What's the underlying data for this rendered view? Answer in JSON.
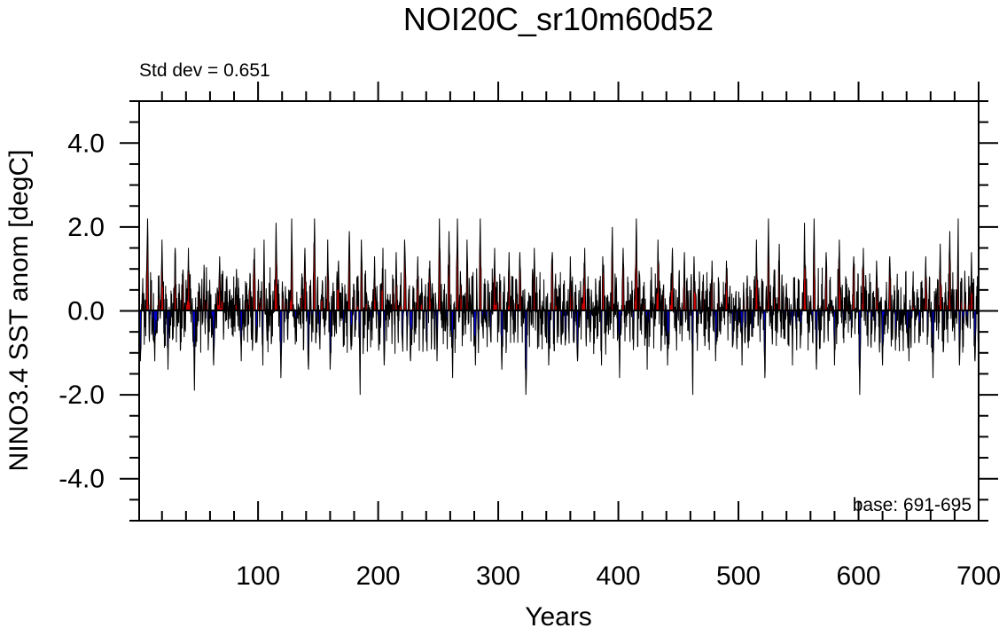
{
  "chart_data": {
    "type": "line",
    "title": "NOI20C_sr10m60d52",
    "subtitle_left": "Std dev = 0.651",
    "annotation": "base: 691-695",
    "xlabel": "Years",
    "ylabel": "NINO3.4 SST anom [degC]",
    "xlim": [
      1,
      700
    ],
    "ylim": [
      -5,
      5
    ],
    "x_ticks": [
      100,
      200,
      300,
      400,
      500,
      600,
      700
    ],
    "x_tick_labels": [
      "100",
      "200",
      "300",
      "400",
      "500",
      "600",
      "700"
    ],
    "y_ticks": [
      -4,
      -2,
      0,
      2,
      4
    ],
    "y_tick_labels": [
      "-4.0",
      "-2.0",
      "0.0",
      "2.0",
      "4.0"
    ],
    "std_dev": 0.651,
    "fill_above_color": "#cc0000",
    "fill_below_color": "#0000cc",
    "line_color": "#000000",
    "series": [
      {
        "values_description_omitted": true,
        "peaks": [
          {
            "x": 8,
            "y": 2.2
          },
          {
            "x": 20,
            "y": 1.7
          },
          {
            "x": 31,
            "y": 1.5
          },
          {
            "x": 42,
            "y": 1.5
          },
          {
            "x": 55,
            "y": 1.1
          },
          {
            "x": 68,
            "y": 1.3
          },
          {
            "x": 82,
            "y": 1.0
          },
          {
            "x": 97,
            "y": 1.5
          },
          {
            "x": 105,
            "y": 1.7
          },
          {
            "x": 115,
            "y": 2.1
          },
          {
            "x": 128,
            "y": 2.2
          },
          {
            "x": 139,
            "y": 1.5
          },
          {
            "x": 147,
            "y": 2.2
          },
          {
            "x": 158,
            "y": 1.7
          },
          {
            "x": 167,
            "y": 1.2
          },
          {
            "x": 176,
            "y": 1.9
          },
          {
            "x": 186,
            "y": 1.7
          },
          {
            "x": 197,
            "y": 1.3
          },
          {
            "x": 204,
            "y": 1.5
          },
          {
            "x": 215,
            "y": 1.4
          },
          {
            "x": 222,
            "y": 1.7
          },
          {
            "x": 233,
            "y": 1.3
          },
          {
            "x": 243,
            "y": 1.2
          },
          {
            "x": 251,
            "y": 2.2
          },
          {
            "x": 259,
            "y": 1.9
          },
          {
            "x": 266,
            "y": 2.2
          },
          {
            "x": 274,
            "y": 1.7
          },
          {
            "x": 285,
            "y": 2.2
          },
          {
            "x": 297,
            "y": 1.5
          },
          {
            "x": 309,
            "y": 1.4
          },
          {
            "x": 318,
            "y": 1.4
          },
          {
            "x": 330,
            "y": 1.5
          },
          {
            "x": 345,
            "y": 1.4
          },
          {
            "x": 360,
            "y": 1.3
          },
          {
            "x": 372,
            "y": 1.5
          },
          {
            "x": 387,
            "y": 1.3
          },
          {
            "x": 395,
            "y": 2.0
          },
          {
            "x": 404,
            "y": 1.5
          },
          {
            "x": 415,
            "y": 2.2
          },
          {
            "x": 424,
            "y": 2.1
          },
          {
            "x": 433,
            "y": 1.7
          },
          {
            "x": 445,
            "y": 1.5
          },
          {
            "x": 455,
            "y": 1.4
          },
          {
            "x": 463,
            "y": 1.3
          },
          {
            "x": 478,
            "y": 1.2
          },
          {
            "x": 490,
            "y": 1.2
          },
          {
            "x": 503,
            "y": 1.2
          },
          {
            "x": 515,
            "y": 1.7
          },
          {
            "x": 525,
            "y": 2.2
          },
          {
            "x": 534,
            "y": 1.6
          },
          {
            "x": 545,
            "y": 2.0
          },
          {
            "x": 555,
            "y": 2.1
          },
          {
            "x": 563,
            "y": 2.2
          },
          {
            "x": 573,
            "y": 1.4
          },
          {
            "x": 584,
            "y": 1.7
          },
          {
            "x": 596,
            "y": 1.3
          },
          {
            "x": 604,
            "y": 1.5
          },
          {
            "x": 615,
            "y": 1.2
          },
          {
            "x": 626,
            "y": 1.3
          },
          {
            "x": 642,
            "y": 1.3
          },
          {
            "x": 656,
            "y": 1.3
          },
          {
            "x": 668,
            "y": 1.6
          },
          {
            "x": 676,
            "y": 1.9
          },
          {
            "x": 683,
            "y": 2.2
          },
          {
            "x": 694,
            "y": 1.4
          }
        ],
        "troughs": [
          {
            "x": 2,
            "y": -1.2
          },
          {
            "x": 14,
            "y": -1.2
          },
          {
            "x": 25,
            "y": -1.4
          },
          {
            "x": 47,
            "y": -1.9
          },
          {
            "x": 63,
            "y": -1.3
          },
          {
            "x": 86,
            "y": -1.2
          },
          {
            "x": 104,
            "y": -1.3
          },
          {
            "x": 119,
            "y": -1.6
          },
          {
            "x": 142,
            "y": -1.4
          },
          {
            "x": 160,
            "y": -1.4
          },
          {
            "x": 185,
            "y": -2.0
          },
          {
            "x": 205,
            "y": -1.3
          },
          {
            "x": 227,
            "y": -1.2
          },
          {
            "x": 249,
            "y": -1.2
          },
          {
            "x": 262,
            "y": -1.6
          },
          {
            "x": 281,
            "y": -1.3
          },
          {
            "x": 303,
            "y": -1.4
          },
          {
            "x": 323,
            "y": -2.0
          },
          {
            "x": 342,
            "y": -1.3
          },
          {
            "x": 366,
            "y": -1.2
          },
          {
            "x": 386,
            "y": -1.3
          },
          {
            "x": 401,
            "y": -1.6
          },
          {
            "x": 424,
            "y": -1.4
          },
          {
            "x": 441,
            "y": -1.3
          },
          {
            "x": 462,
            "y": -2.0
          },
          {
            "x": 481,
            "y": -1.2
          },
          {
            "x": 503,
            "y": -1.3
          },
          {
            "x": 522,
            "y": -1.6
          },
          {
            "x": 545,
            "y": -1.3
          },
          {
            "x": 565,
            "y": -1.4
          },
          {
            "x": 580,
            "y": -1.3
          },
          {
            "x": 601,
            "y": -2.0
          },
          {
            "x": 620,
            "y": -1.3
          },
          {
            "x": 642,
            "y": -1.2
          },
          {
            "x": 662,
            "y": -1.6
          },
          {
            "x": 684,
            "y": -1.3
          },
          {
            "x": 697,
            "y": -1.2
          }
        ]
      }
    ]
  }
}
